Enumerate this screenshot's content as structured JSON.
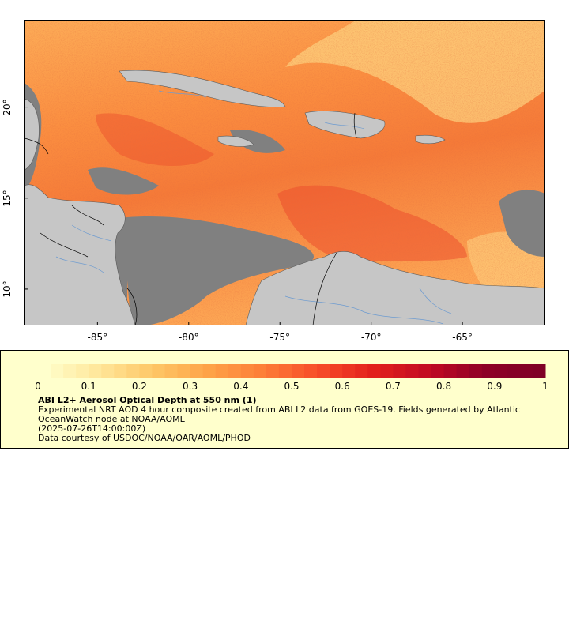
{
  "map": {
    "lon_range": [
      -89,
      -60.5
    ],
    "lat_range": [
      8,
      24.8
    ],
    "lon_ticks": [
      {
        "value": -85,
        "label": "-85°"
      },
      {
        "value": -80,
        "label": "-80°"
      },
      {
        "value": -75,
        "label": "-75°"
      },
      {
        "value": -70,
        "label": "-70°"
      },
      {
        "value": -65,
        "label": "-65°"
      }
    ],
    "lat_ticks": [
      {
        "value": 20,
        "label": "20°"
      },
      {
        "value": 15,
        "label": "15°"
      },
      {
        "value": 10,
        "label": "10°"
      }
    ],
    "colors": {
      "land": "#c6c6c6",
      "no_data": "#808080",
      "rivers": "#6d9bd0",
      "borders": "#000000"
    }
  },
  "legend": {
    "title": "ABI L2+ Aerosol Optical Depth at 550 nm (1)",
    "description": "Experimental NRT AOD 4 hour composite created from ABI L2 data from GOES-19. Fields generated by Atlantic OceanWatch node at NOAA/AOML",
    "timestamp": "(2025-07-26T14:00:00Z)",
    "credit": "Data courtesy of USDOC/NOAA/OAR/AOML/PHOD",
    "colorbar": {
      "min": 0,
      "max": 1,
      "ticks": [
        {
          "value": 0,
          "label": "0"
        },
        {
          "value": 0.1,
          "label": "0.1"
        },
        {
          "value": 0.2,
          "label": "0.2"
        },
        {
          "value": 0.3,
          "label": "0.3"
        },
        {
          "value": 0.4,
          "label": "0.4"
        },
        {
          "value": 0.5,
          "label": "0.5"
        },
        {
          "value": 0.6,
          "label": "0.6"
        },
        {
          "value": 0.7,
          "label": "0.7"
        },
        {
          "value": 0.8,
          "label": "0.8"
        },
        {
          "value": 0.9,
          "label": "0.9"
        },
        {
          "value": 1,
          "label": "1"
        }
      ],
      "color_stops": [
        "#ffffcc",
        "#ffe699",
        "#fec665",
        "#fea247",
        "#fd7d37",
        "#f74b29",
        "#e2201c",
        "#c20a23",
        "#8e0026",
        "#800026"
      ]
    }
  }
}
